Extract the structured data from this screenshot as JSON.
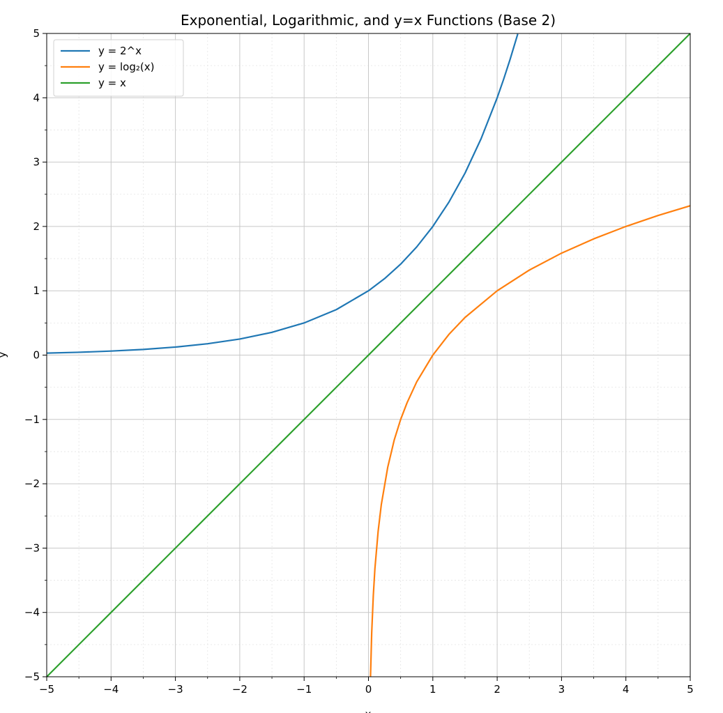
{
  "chart_data": {
    "type": "line",
    "title": "Exponential, Logarithmic, and y=x Functions (Base 2)",
    "xlabel": "x",
    "ylabel": "y",
    "xlim": [
      -5,
      5
    ],
    "ylim": [
      -5,
      5
    ],
    "xticks": [
      -5,
      -4,
      -3,
      -2,
      -1,
      0,
      1,
      2,
      3,
      4,
      5
    ],
    "yticks": [
      -5,
      -4,
      -3,
      -2,
      -1,
      0,
      1,
      2,
      3,
      4,
      5
    ],
    "grid": true,
    "minor_grid": true,
    "legend_position": "top-left",
    "series": [
      {
        "name": "y = 2^x",
        "color": "#1f77b4",
        "x": [
          -5,
          -4.5,
          -4,
          -3.5,
          -3,
          -2.5,
          -2,
          -1.5,
          -1,
          -0.5,
          0,
          0.25,
          0.5,
          0.75,
          1,
          1.25,
          1.5,
          1.75,
          2,
          2.1,
          2.2,
          2.32
        ],
        "y": [
          0.031,
          0.044,
          0.063,
          0.088,
          0.125,
          0.177,
          0.25,
          0.354,
          0.5,
          0.707,
          1,
          1.189,
          1.414,
          1.682,
          2,
          2.378,
          2.828,
          3.364,
          4,
          4.287,
          4.595,
          4.993
        ]
      },
      {
        "name": "y = log₂(x)",
        "color": "#ff7f0e",
        "x": [
          0.03,
          0.05,
          0.075,
          0.1,
          0.15,
          0.2,
          0.3,
          0.4,
          0.5,
          0.6,
          0.75,
          1,
          1.25,
          1.5,
          2,
          2.5,
          3,
          3.5,
          4,
          4.5,
          5
        ],
        "y": [
          -5.06,
          -4.32,
          -3.74,
          -3.32,
          -2.74,
          -2.32,
          -1.74,
          -1.32,
          -1,
          -0.74,
          -0.415,
          0,
          0.322,
          0.585,
          1,
          1.322,
          1.585,
          1.807,
          2,
          2.17,
          2.322
        ]
      },
      {
        "name": "y = x",
        "color": "#2ca02c",
        "x": [
          -5,
          5
        ],
        "y": [
          -5,
          5
        ]
      }
    ]
  }
}
